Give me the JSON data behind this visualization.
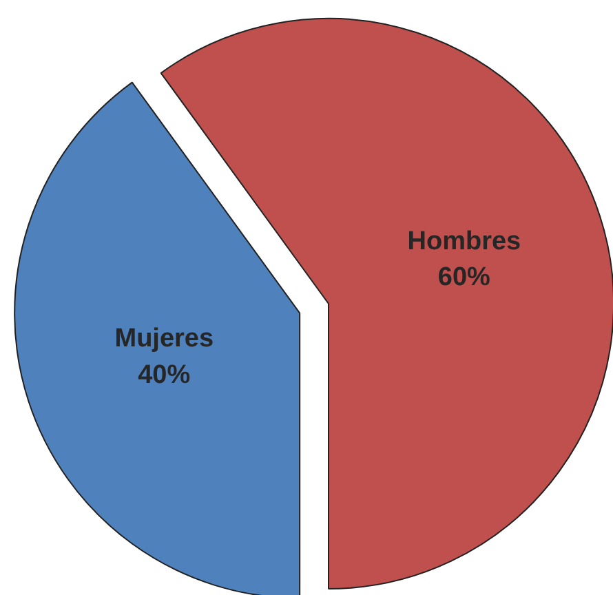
{
  "chart_data": {
    "type": "pie",
    "categories": [
      "Hombres",
      "Mujeres"
    ],
    "values": [
      60,
      40
    ],
    "colors": [
      "#c0504d",
      "#4f81bd"
    ],
    "value_labels": [
      "60%",
      "40%"
    ]
  }
}
